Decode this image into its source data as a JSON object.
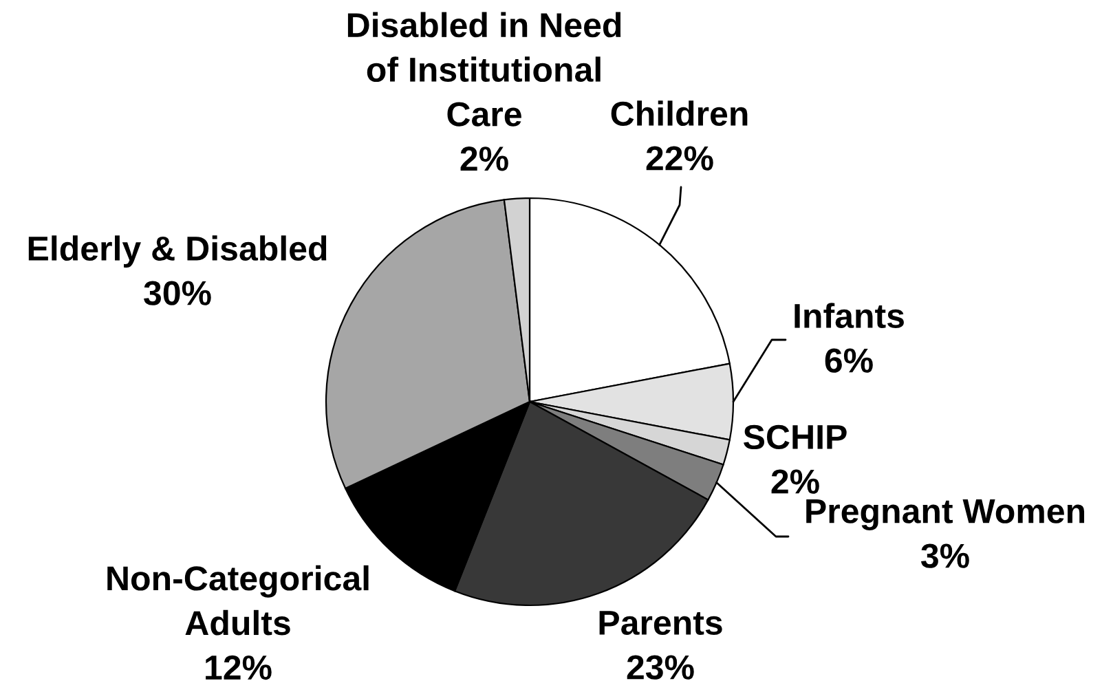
{
  "chart_data": {
    "type": "pie",
    "categories": [
      "Children",
      "Infants",
      "SCHIP",
      "Pregnant Women",
      "Parents",
      "Non-Categorical\nAdults",
      "Elderly & Disabled",
      "Disabled in Need\nof Institutional\nCare"
    ],
    "values": [
      22,
      6,
      2,
      3,
      23,
      12,
      30,
      2
    ],
    "value_labels": [
      "22%",
      "6%",
      "2%",
      "3%",
      "23%",
      "12%",
      "30%",
      "2%"
    ],
    "colors": [
      "#ffffff",
      "#e2e2e2",
      "#d6d6d6",
      "#7e7e7e",
      "#383838",
      "#000000",
      "#a6a6a6",
      "#d2d2d2"
    ]
  }
}
